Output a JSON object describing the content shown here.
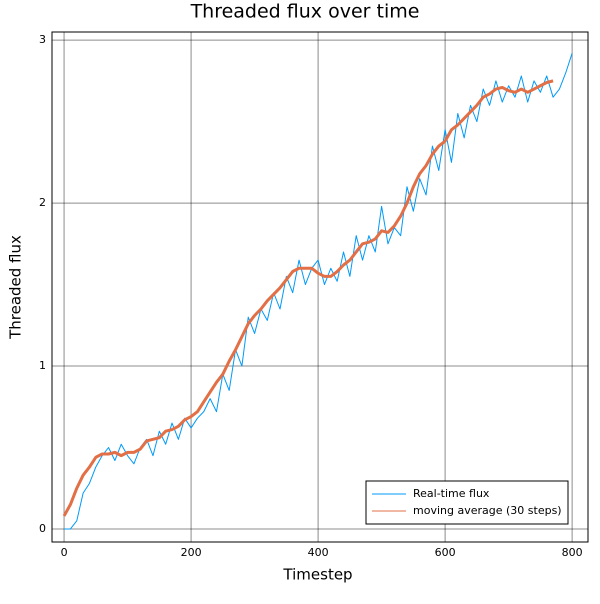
{
  "chart_data": {
    "type": "line",
    "title": "Threaded flux over time",
    "x_label": "Timestep",
    "y_label": "Threaded flux",
    "xlim": [
      -19,
      825
    ],
    "ylim": [
      -0.08,
      3.05
    ],
    "xticks": [
      0,
      200,
      400,
      600,
      800
    ],
    "yticks": [
      0,
      1,
      2,
      3
    ],
    "grid": true,
    "legend": "bottom-right",
    "series": [
      {
        "name": "Real-time flux",
        "color": "#009af9",
        "width": 1,
        "x": [
          0,
          10,
          20,
          30,
          40,
          50,
          60,
          70,
          80,
          90,
          100,
          110,
          120,
          130,
          140,
          150,
          160,
          170,
          180,
          190,
          200,
          210,
          220,
          230,
          240,
          250,
          260,
          270,
          280,
          290,
          300,
          310,
          320,
          330,
          340,
          350,
          360,
          370,
          380,
          390,
          400,
          410,
          420,
          430,
          440,
          450,
          460,
          470,
          480,
          490,
          500,
          510,
          520,
          530,
          540,
          550,
          560,
          570,
          580,
          590,
          600,
          610,
          620,
          630,
          640,
          650,
          660,
          670,
          680,
          690,
          700,
          710,
          720,
          730,
          740,
          750,
          760,
          770,
          780,
          790,
          800
        ],
        "values": [
          0,
          0,
          0.05,
          0.22,
          0.28,
          0.38,
          0.45,
          0.5,
          0.42,
          0.52,
          0.45,
          0.4,
          0.5,
          0.55,
          0.45,
          0.6,
          0.52,
          0.65,
          0.55,
          0.68,
          0.62,
          0.68,
          0.72,
          0.8,
          0.72,
          0.95,
          0.85,
          1.1,
          1.0,
          1.3,
          1.2,
          1.35,
          1.28,
          1.45,
          1.35,
          1.55,
          1.45,
          1.65,
          1.5,
          1.6,
          1.65,
          1.5,
          1.6,
          1.52,
          1.7,
          1.55,
          1.8,
          1.65,
          1.8,
          1.7,
          1.98,
          1.75,
          1.85,
          1.8,
          2.1,
          1.95,
          2.15,
          2.05,
          2.35,
          2.2,
          2.45,
          2.25,
          2.55,
          2.4,
          2.6,
          2.5,
          2.7,
          2.6,
          2.75,
          2.62,
          2.72,
          2.65,
          2.78,
          2.62,
          2.75,
          2.68,
          2.78,
          2.65,
          2.7,
          2.8,
          2.92
        ]
      },
      {
        "name": "moving average (30 steps)",
        "color": "#e26f46",
        "width": 3,
        "x": [
          0,
          10,
          20,
          30,
          40,
          50,
          60,
          70,
          80,
          90,
          100,
          110,
          120,
          130,
          140,
          150,
          160,
          170,
          180,
          190,
          200,
          210,
          220,
          230,
          240,
          250,
          260,
          270,
          280,
          290,
          300,
          310,
          320,
          330,
          340,
          350,
          360,
          370,
          380,
          390,
          400,
          410,
          420,
          430,
          440,
          450,
          460,
          470,
          480,
          490,
          500,
          510,
          520,
          530,
          540,
          550,
          560,
          570,
          580,
          590,
          600,
          610,
          620,
          630,
          640,
          650,
          660,
          670,
          680,
          690,
          700,
          710,
          720,
          730,
          740,
          750,
          760,
          770
        ],
        "values": [
          0.08,
          0.15,
          0.25,
          0.33,
          0.38,
          0.44,
          0.46,
          0.46,
          0.47,
          0.45,
          0.47,
          0.47,
          0.49,
          0.54,
          0.55,
          0.56,
          0.6,
          0.61,
          0.63,
          0.67,
          0.69,
          0.72,
          0.78,
          0.84,
          0.9,
          0.95,
          1.03,
          1.1,
          1.18,
          1.26,
          1.31,
          1.35,
          1.4,
          1.44,
          1.48,
          1.53,
          1.58,
          1.6,
          1.6,
          1.6,
          1.57,
          1.55,
          1.55,
          1.58,
          1.62,
          1.65,
          1.7,
          1.75,
          1.76,
          1.78,
          1.83,
          1.82,
          1.86,
          1.92,
          2.0,
          2.1,
          2.18,
          2.23,
          2.3,
          2.35,
          2.38,
          2.45,
          2.48,
          2.52,
          2.56,
          2.6,
          2.65,
          2.67,
          2.7,
          2.71,
          2.69,
          2.68,
          2.7,
          2.68,
          2.7,
          2.72,
          2.74,
          2.75
        ]
      }
    ]
  }
}
